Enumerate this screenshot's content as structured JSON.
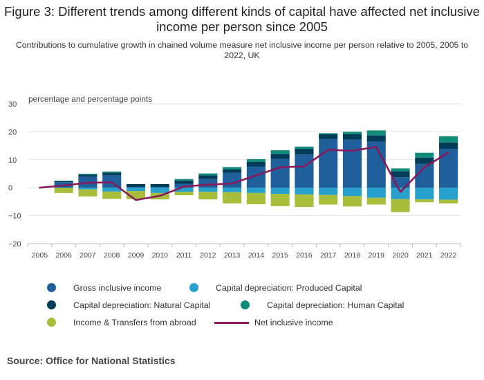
{
  "title": "Figure 3: Different trends among different kinds of capital have affected net inclusive income per person since 2005",
  "subtitle": "Contributions to cumulative growth in chained volume measure net inclusive income per person relative to 2005, 2005 to 2022, UK",
  "source": "Source: Office for National Statistics",
  "chart_data": {
    "type": "bar",
    "stacked": true,
    "ylabel": "percentage and percentage points",
    "ylim": [
      -20,
      30
    ],
    "yticks": [
      "30",
      "20",
      "10",
      "0",
      "−10",
      "−20"
    ],
    "grid": true,
    "legend_position": "bottom",
    "categories": [
      "2005",
      "2006",
      "2007",
      "2008",
      "2009",
      "2010",
      "2011",
      "2012",
      "2013",
      "2014",
      "2015",
      "2016",
      "2017",
      "2018",
      "2019",
      "2020",
      "2021",
      "2022"
    ],
    "series": [
      {
        "name": "Gross inclusive income",
        "color": "#1f5f9b",
        "values": [
          0,
          2.0,
          4.0,
          4.5,
          0.3,
          0.3,
          1.4,
          3.1,
          5.3,
          7.6,
          10.3,
          11.9,
          17.4,
          17.2,
          16.5,
          3.7,
          8.5,
          13.9
        ]
      },
      {
        "name": "Capital depreciation: Produced Capital",
        "color": "#27a0cc",
        "values": [
          0,
          -0.1,
          -0.6,
          -1.4,
          -1.2,
          -1.9,
          -1.5,
          -1.5,
          -1.6,
          -1.9,
          -2.2,
          -2.4,
          -2.6,
          -3.0,
          -3.6,
          -4.1,
          -4.2,
          -4.3
        ]
      },
      {
        "name": "Capital depreciation: Natural Capital",
        "color": "#003c57",
        "values": [
          0,
          0.4,
          0.7,
          0.9,
          1.0,
          1.0,
          1.2,
          1.3,
          1.3,
          1.7,
          1.8,
          2.0,
          1.7,
          2.0,
          2.2,
          2.2,
          2.2,
          2.3
        ]
      },
      {
        "name": "Capital depreciation: Human Capital",
        "color": "#118c7b",
        "values": [
          0,
          0.1,
          0.3,
          0.4,
          0.0,
          0.0,
          0.5,
          0.7,
          0.8,
          0.9,
          1.3,
          0.8,
          0.4,
          0.8,
          1.8,
          1.0,
          1.8,
          2.2
        ]
      },
      {
        "name": "Income & Transfers from abroad",
        "color": "#a8bd3a",
        "values": [
          0,
          -1.8,
          -2.5,
          -2.6,
          -2.9,
          -2.3,
          -1.2,
          -2.7,
          -4.0,
          -4.0,
          -4.4,
          -4.5,
          -3.4,
          -3.7,
          -2.4,
          -4.6,
          -1.0,
          -1.3
        ]
      },
      {
        "name": "Net inclusive income",
        "color": "#871a5b",
        "type": "line",
        "values": [
          0,
          0.8,
          1.8,
          1.9,
          -4.4,
          -2.9,
          0.4,
          1.1,
          1.5,
          4.4,
          7.3,
          7.6,
          13.6,
          13.2,
          14.6,
          -1.5,
          7.3,
          12.6
        ]
      }
    ]
  }
}
